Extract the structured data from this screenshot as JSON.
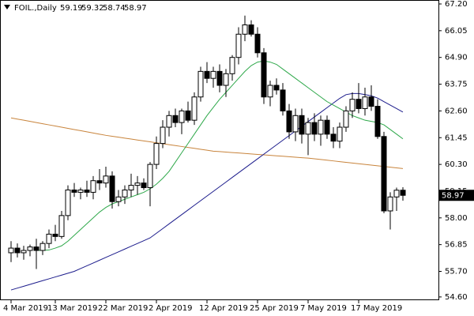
{
  "chart_data": {
    "type": "candlestick",
    "title": "FOIL.,Daily",
    "categories": [
      "4 Mar 2019",
      null,
      null,
      null,
      null,
      null,
      null,
      "13 Mar 2019",
      null,
      null,
      null,
      null,
      null,
      null,
      null,
      "22 Mar 2019",
      null,
      null,
      null,
      null,
      null,
      null,
      null,
      "2 Apr 2019",
      null,
      null,
      null,
      null,
      null,
      null,
      null,
      "12 Apr 2019",
      null,
      null,
      null,
      null,
      null,
      null,
      null,
      "25 Apr 2019",
      null,
      null,
      null,
      null,
      null,
      null,
      null,
      "7 May 2019",
      null,
      null,
      null,
      null,
      null,
      null,
      null,
      "17 May 2019",
      null,
      null,
      null,
      null,
      null,
      null,
      null
    ],
    "open": [
      56.5,
      56.7,
      56.5,
      56.6,
      56.75,
      56.6,
      56.9,
      57.3,
      57.2,
      58.1,
      59.2,
      59.1,
      59.2,
      59.1,
      59.6,
      59.5,
      59.8,
      58.7,
      58.9,
      59.2,
      59.4,
      59.5,
      59.3,
      60.3,
      61.2,
      61.9,
      62.4,
      62.1,
      62.6,
      62.2,
      63.2,
      64.3,
      64.0,
      64.3,
      63.7,
      64.2,
      64.9,
      65.9,
      66.3,
      65.9,
      65.1,
      63.2,
      63.7,
      63.5,
      62.6,
      61.7,
      62.4,
      61.6,
      62.1,
      61.6,
      62.2,
      61.6,
      61.3,
      61.9,
      62.6,
      63.1,
      62.7,
      63.2,
      62.8,
      61.5,
      58.3,
      58.9,
      59.19
    ],
    "high": [
      57.0,
      56.9,
      56.8,
      56.85,
      57.1,
      57.0,
      57.5,
      57.7,
      58.3,
      59.4,
      59.5,
      59.3,
      59.6,
      59.8,
      60.1,
      60.2,
      60.0,
      59.2,
      59.4,
      59.9,
      59.8,
      59.7,
      60.4,
      61.5,
      62.2,
      62.6,
      62.7,
      62.7,
      63.0,
      63.4,
      64.5,
      64.7,
      64.5,
      64.6,
      64.4,
      65.0,
      66.2,
      66.7,
      66.5,
      66.2,
      65.3,
      63.9,
      64.0,
      63.8,
      62.9,
      62.7,
      62.7,
      62.3,
      62.5,
      62.4,
      62.4,
      61.9,
      62.1,
      62.8,
      63.4,
      63.8,
      63.6,
      63.7,
      63.1,
      61.7,
      59.1,
      59.3,
      59.32
    ],
    "low": [
      56.1,
      56.3,
      56.2,
      56.35,
      55.8,
      56.4,
      56.7,
      57.0,
      57.1,
      57.9,
      58.9,
      58.8,
      58.9,
      58.8,
      59.2,
      59.3,
      58.4,
      58.5,
      58.6,
      58.9,
      59.0,
      59.2,
      58.5,
      60.1,
      61.0,
      61.5,
      61.9,
      61.6,
      62.1,
      62.0,
      63.0,
      63.8,
      63.6,
      63.4,
      63.2,
      63.9,
      64.6,
      65.6,
      65.8,
      64.9,
      62.9,
      62.8,
      63.3,
      62.4,
      61.4,
      61.3,
      61.2,
      60.7,
      61.3,
      61.1,
      61.4,
      61.0,
      61.0,
      61.7,
      62.3,
      62.5,
      62.4,
      62.6,
      61.4,
      58.2,
      57.5,
      58.3,
      58.74
    ],
    "close": [
      56.7,
      56.5,
      56.6,
      56.75,
      56.6,
      56.9,
      57.3,
      57.2,
      58.1,
      59.2,
      59.1,
      59.2,
      59.1,
      59.6,
      59.5,
      59.8,
      58.7,
      58.9,
      59.2,
      59.4,
      59.5,
      59.3,
      60.3,
      61.2,
      61.9,
      62.4,
      62.1,
      62.6,
      62.2,
      63.2,
      64.3,
      64.0,
      64.3,
      63.7,
      64.2,
      64.9,
      65.9,
      66.3,
      65.9,
      65.1,
      63.2,
      63.7,
      63.5,
      62.6,
      61.7,
      62.4,
      61.6,
      62.1,
      61.6,
      62.2,
      61.6,
      61.3,
      61.9,
      62.6,
      63.1,
      62.7,
      63.2,
      62.8,
      61.5,
      58.3,
      58.9,
      59.19,
      58.97
    ],
    "up_color": "#ffffff",
    "down_color": "#000000",
    "series": [
      {
        "color": "#c8843c",
        "values": [
          62.3,
          62.25,
          62.2,
          62.15,
          62.1,
          62.05,
          62.0,
          61.95,
          61.9,
          61.85,
          61.8,
          61.75,
          61.7,
          61.65,
          61.6,
          61.55,
          61.51,
          61.47,
          61.43,
          61.39,
          61.35,
          61.31,
          61.27,
          61.23,
          61.19,
          61.15,
          61.11,
          61.07,
          61.03,
          60.99,
          60.95,
          60.91,
          60.87,
          60.85,
          60.83,
          60.81,
          60.79,
          60.77,
          60.75,
          60.73,
          60.71,
          60.69,
          60.67,
          60.65,
          60.63,
          60.61,
          60.59,
          60.57,
          60.54,
          60.51,
          60.48,
          60.45,
          60.42,
          60.39,
          60.36,
          60.33,
          60.3,
          60.27,
          60.24,
          60.21,
          60.18,
          60.15,
          60.12
        ]
      },
      {
        "color": "#1c1c8c",
        "values": [
          54.9,
          54.98,
          55.06,
          55.14,
          55.22,
          55.3,
          55.38,
          55.46,
          55.54,
          55.62,
          55.7,
          55.82,
          55.94,
          56.06,
          56.18,
          56.3,
          56.42,
          56.54,
          56.66,
          56.78,
          56.9,
          57.02,
          57.14,
          57.34,
          57.54,
          57.74,
          57.94,
          58.14,
          58.34,
          58.54,
          58.74,
          58.94,
          59.14,
          59.34,
          59.54,
          59.74,
          59.94,
          60.14,
          60.34,
          60.54,
          60.74,
          60.94,
          61.14,
          61.34,
          61.54,
          61.74,
          61.94,
          62.14,
          62.34,
          62.54,
          62.74,
          62.94,
          63.14,
          63.3,
          63.35,
          63.35,
          63.3,
          63.25,
          63.15,
          63.0,
          62.85,
          62.7,
          62.55
        ]
      },
      {
        "color": "#2ea84a",
        "values": [
          null,
          null,
          null,
          null,
          56.6,
          56.6,
          56.62,
          56.7,
          56.8,
          57.0,
          57.25,
          57.5,
          57.75,
          58.0,
          58.25,
          58.45,
          58.6,
          58.7,
          58.8,
          58.9,
          59.0,
          59.1,
          59.25,
          59.45,
          59.7,
          60.0,
          60.4,
          60.8,
          61.2,
          61.6,
          62.0,
          62.4,
          62.75,
          63.1,
          63.4,
          63.7,
          64.0,
          64.3,
          64.55,
          64.7,
          64.75,
          64.7,
          64.6,
          64.4,
          64.2,
          64.0,
          63.8,
          63.6,
          63.4,
          63.2,
          63.0,
          62.85,
          62.7,
          62.55,
          62.4,
          62.3,
          62.2,
          62.15,
          62.1,
          62.0,
          61.8,
          61.6,
          61.4
        ]
      }
    ],
    "ylim": [
      54.46,
      67.37
    ],
    "yticks": [
      {
        "value": 67.2,
        "label": "67.20"
      },
      66.05,
      {
        "value": 64.9,
        "label": "64.90"
      },
      63.75,
      {
        "value": 62.6,
        "label": "62.60"
      },
      61.45,
      {
        "value": 60.3,
        "label": "60.30"
      },
      59.15,
      {
        "value": 58,
        "label": "58.00"
      },
      56.85,
      {
        "value": 55.7,
        "label": "55.70"
      },
      {
        "value": 54.6,
        "label": "54.60"
      }
    ],
    "grid": false
  }
}
